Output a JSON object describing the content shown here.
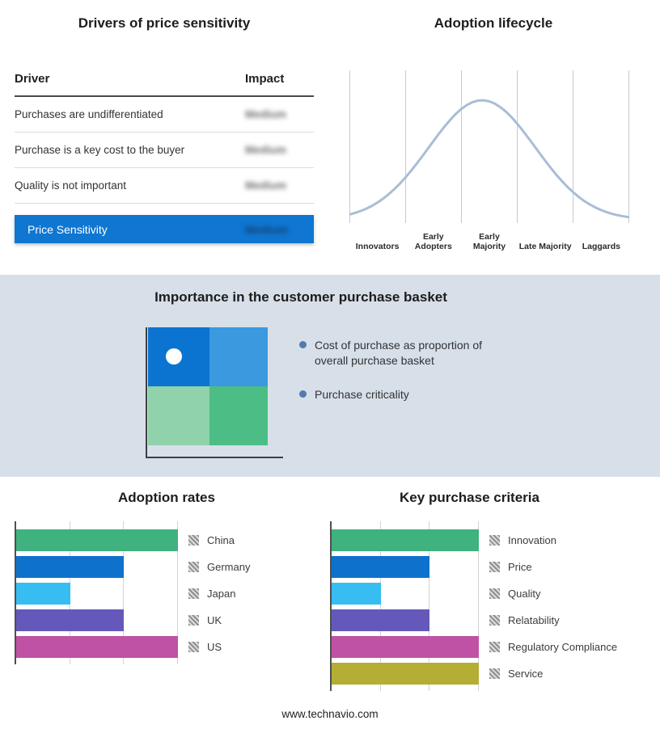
{
  "colors": {
    "accent_blue": "#0f76d2",
    "band_bg": "#d7dfe9",
    "curve": "#a9bdd6",
    "grid": "#c4cad2",
    "quad_top_left": "#0b74d1",
    "quad_top_right": "#3b99e0",
    "quad_bottom_left": "#8fd2ab",
    "quad_bottom_right": "#4cbd85",
    "bullet_dot": "#4e7cab"
  },
  "sections": {
    "basket": {
      "title": "Importance in the customer purchase basket",
      "bullets": [
        "Cost of purchase as proportion of overall purchase basket",
        "Purchase criticality"
      ]
    },
    "footer": {
      "url": "www.technavio.com"
    }
  },
  "chart_data": [
    {
      "id": "drivers-of-price-sensitivity",
      "type": "table",
      "title": "Drivers of price sensitivity",
      "columns": [
        "Driver",
        "Impact"
      ],
      "rows": [
        [
          "Purchases are undifferentiated",
          "Medium"
        ],
        [
          "Purchase is a key cost to the buyer",
          "Medium"
        ],
        [
          "Quality is not important",
          "Medium"
        ],
        [
          "Price Sensitivity",
          "Medium"
        ]
      ],
      "impact_values_blurred": true,
      "highlight_row": "Price Sensitivity"
    },
    {
      "id": "adoption-lifecycle",
      "type": "line",
      "title": "Adoption lifecycle",
      "categories": [
        "Innovators",
        "Early Adopters",
        "Early Majority",
        "Late Majority",
        "Laggards"
      ],
      "curve": "bell",
      "peak_category": "Early Majority",
      "peak_position": 0.474,
      "sigma": 0.19
    },
    {
      "id": "adoption-rates",
      "type": "bar",
      "orientation": "horizontal",
      "title": "Adoption rates",
      "categories": [
        "China",
        "Germany",
        "Japan",
        "UK",
        "US"
      ],
      "values": [
        3,
        2,
        1,
        2,
        3
      ],
      "xlim": [
        0,
        3
      ],
      "grid": true,
      "legend_position": "right",
      "colors": [
        "#3fb27f",
        "#0e72cc",
        "#36bdf2",
        "#6459ba",
        "#bf52a5"
      ]
    },
    {
      "id": "key-purchase-criteria",
      "type": "bar",
      "orientation": "horizontal",
      "title": "Key purchase criteria",
      "categories": [
        "Innovation",
        "Price",
        "Quality",
        "Relatability",
        "Regulatory Compliance",
        "Service"
      ],
      "values": [
        3,
        2,
        1,
        2,
        3,
        3
      ],
      "xlim": [
        0,
        3
      ],
      "grid": true,
      "legend_position": "right",
      "colors": [
        "#3fb27f",
        "#0e72cc",
        "#36bdf2",
        "#6459ba",
        "#bf52a5",
        "#b4ae35"
      ]
    }
  ]
}
